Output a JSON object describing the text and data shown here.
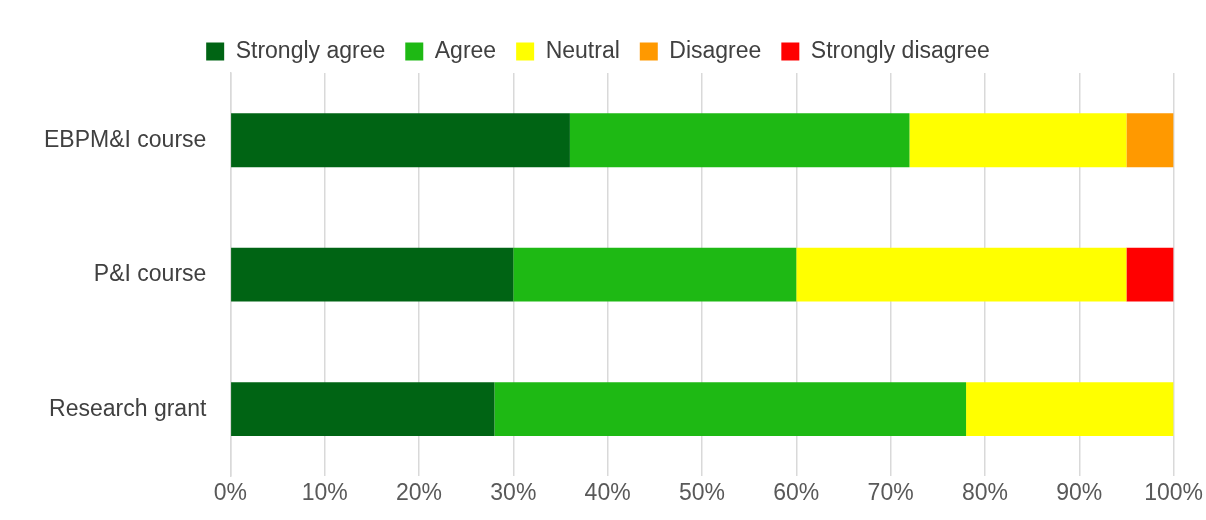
{
  "chart_data": {
    "type": "bar",
    "orientation": "horizontal",
    "stacked": true,
    "categories": [
      "EBPM&I course",
      "P&I course",
      "Research grant"
    ],
    "series": [
      {
        "name": "Strongly agree",
        "color": "#006414",
        "values": [
          36,
          30,
          28
        ]
      },
      {
        "name": "Agree",
        "color": "#1eb914",
        "values": [
          36,
          30,
          50
        ]
      },
      {
        "name": "Neutral",
        "color": "#ffff00",
        "values": [
          23,
          35,
          22
        ]
      },
      {
        "name": "Disagree",
        "color": "#ff9900",
        "values": [
          5,
          null,
          null
        ]
      },
      {
        "name": "Strongly disagree",
        "color": "#ff0000",
        "values": [
          null,
          5,
          null
        ]
      }
    ],
    "xlim": [
      0,
      100
    ],
    "xticks": [
      {
        "value": 0,
        "label": "0%"
      },
      {
        "value": 10,
        "label": "10%"
      },
      {
        "value": 20,
        "label": "20%"
      },
      {
        "value": 30,
        "label": "30%"
      },
      {
        "value": 40,
        "label": "40%"
      },
      {
        "value": 50,
        "label": "50%"
      },
      {
        "value": 60,
        "label": "60%"
      },
      {
        "value": 70,
        "label": "70%"
      },
      {
        "value": 80,
        "label": "80%"
      },
      {
        "value": 90,
        "label": "90%"
      },
      {
        "value": 100,
        "label": "100%"
      }
    ],
    "grid": "x",
    "legend": "top"
  }
}
